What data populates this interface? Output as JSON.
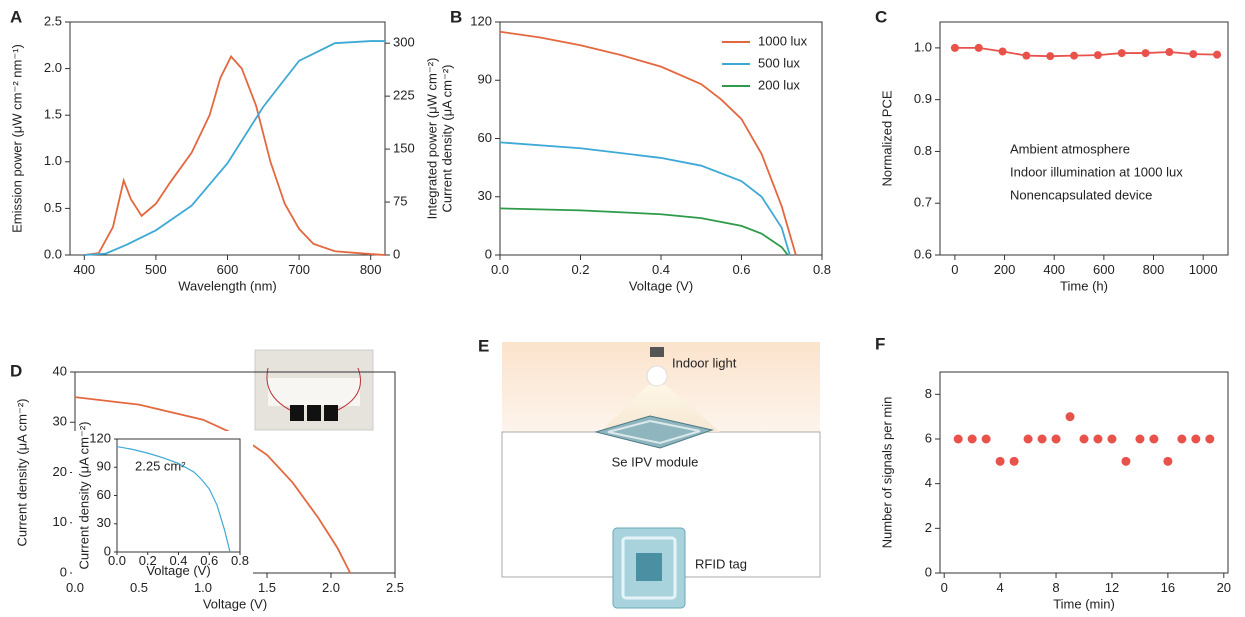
{
  "chart_data": [
    {
      "type": "line",
      "label": "A",
      "xlabel": "Wavelength (nm)",
      "ylabel": "Emission power (μW cm⁻² nm⁻¹)",
      "y2label": "Integrated power (μW cm⁻²)",
      "xlim": [
        380,
        820
      ],
      "xticks": [
        400,
        500,
        600,
        700,
        800
      ],
      "ylim": [
        0,
        2.5
      ],
      "yticks": [
        {
          "value": 0,
          "label": "0.0"
        },
        0.5,
        {
          "value": 1,
          "label": "1.0"
        },
        1.5,
        {
          "value": 2,
          "label": "2.0"
        },
        2.5
      ],
      "y2lim": [
        0,
        330
      ],
      "y2ticks": [
        0,
        75,
        150,
        225,
        300
      ],
      "series": [
        {
          "color": "#e4683f",
          "x": [
            400,
            420,
            440,
            455,
            465,
            480,
            500,
            520,
            550,
            575,
            590,
            605,
            620,
            640,
            660,
            680,
            700,
            720,
            750,
            800,
            820
          ],
          "values": [
            0,
            0.02,
            0.3,
            0.8,
            0.6,
            0.42,
            0.55,
            0.78,
            1.1,
            1.5,
            1.9,
            2.13,
            2.0,
            1.6,
            1.0,
            0.55,
            0.28,
            0.12,
            0.04,
            0.01,
            0
          ]
        },
        {
          "color": "#3ea9d6",
          "axis": "y2",
          "x": [
            400,
            430,
            460,
            500,
            550,
            600,
            650,
            700,
            750,
            800,
            820
          ],
          "values": [
            0,
            2,
            15,
            35,
            70,
            130,
            210,
            275,
            300,
            303,
            303
          ]
        }
      ]
    },
    {
      "type": "line",
      "label": "B",
      "xlabel": "Voltage (V)",
      "ylabel": "Current density (μA cm⁻²)",
      "legend": "upper right",
      "xlim": [
        0,
        0.8
      ],
      "xticks": [
        {
          "value": 0,
          "label": "0.0"
        },
        0.2,
        0.4,
        0.6,
        0.8
      ],
      "ylim": [
        0,
        120
      ],
      "yticks": [
        0,
        30,
        60,
        90,
        120
      ],
      "series": [
        {
          "name": "1000 lux",
          "color": "#e4683f",
          "x": [
            0,
            0.1,
            0.2,
            0.3,
            0.4,
            0.5,
            0.55,
            0.6,
            0.65,
            0.7,
            0.735
          ],
          "values": [
            115,
            112,
            108,
            103,
            97,
            88,
            80,
            70,
            52,
            25,
            0
          ]
        },
        {
          "name": "500 lux",
          "color": "#3ea9d6",
          "x": [
            0,
            0.2,
            0.4,
            0.5,
            0.6,
            0.65,
            0.7,
            0.72
          ],
          "values": [
            58,
            55,
            50,
            46,
            38,
            30,
            14,
            0
          ]
        },
        {
          "name": "200 lux",
          "color": "#2e9a4a",
          "x": [
            0,
            0.2,
            0.4,
            0.5,
            0.6,
            0.65,
            0.7,
            0.715
          ],
          "values": [
            24,
            23,
            21,
            19,
            15,
            11,
            4,
            0
          ]
        }
      ]
    },
    {
      "type": "line",
      "label": "C",
      "markers": true,
      "xlabel": "Time (h)",
      "ylabel": "Normalized PCE",
      "annotations": [
        "Ambient atmosphere",
        "Indoor illumination at 1000 lux",
        "Nonencapsulated device"
      ],
      "xlim": [
        -60,
        1100
      ],
      "xticks": [
        0,
        200,
        400,
        600,
        800,
        1000
      ],
      "ylim": [
        0.6,
        1.05
      ],
      "yticks": [
        0.6,
        0.7,
        0.8,
        0.9,
        {
          "value": 1,
          "label": "1.0"
        }
      ],
      "series": [
        {
          "color": "#e8524a",
          "x": [
            0,
            96,
            192,
            288,
            384,
            480,
            576,
            672,
            768,
            864,
            960,
            1056
          ],
          "values": [
            1.0,
            1.0,
            0.993,
            0.985,
            0.984,
            0.985,
            0.986,
            0.99,
            0.99,
            0.992,
            0.988,
            0.987
          ]
        }
      ]
    },
    {
      "type": "line",
      "label": "D",
      "xlabel": "Voltage (V)",
      "ylabel": "Current density (μA cm⁻²)",
      "xlim": [
        0,
        2.5
      ],
      "xticks": [
        {
          "value": 0,
          "label": "0.0"
        },
        0.5,
        {
          "value": 1,
          "label": "1.0"
        },
        1.5,
        {
          "value": 2,
          "label": "2.0"
        },
        2.5
      ],
      "ylim": [
        0,
        40
      ],
      "yticks": [
        0,
        10,
        20,
        30,
        40
      ],
      "series": [
        {
          "color": "#e4683f",
          "x": [
            0,
            0.5,
            1.0,
            1.3,
            1.5,
            1.7,
            1.9,
            2.05,
            2.15
          ],
          "values": [
            35,
            33.5,
            30.5,
            27,
            23.5,
            18,
            11,
            5,
            0
          ]
        }
      ]
    },
    {
      "type": "line",
      "xlabel": "Voltage (V)",
      "ylabel": "Current density (μA cm⁻²)",
      "annotations": [
        "2.25 cm²"
      ],
      "xlim": [
        0,
        0.8
      ],
      "xticks": [
        {
          "value": 0,
          "label": "0.0"
        },
        0.2,
        0.4,
        0.6,
        0.8
      ],
      "ylim": [
        0,
        120
      ],
      "yticks": [
        0,
        30,
        60,
        90,
        120
      ],
      "series": [
        {
          "color": "#3ea9d6",
          "x": [
            0,
            0.1,
            0.2,
            0.3,
            0.4,
            0.5,
            0.55,
            0.6,
            0.65,
            0.7,
            0.735
          ],
          "values": [
            112,
            109,
            105,
            100,
            94,
            85,
            77,
            67,
            50,
            23,
            0
          ]
        }
      ]
    },
    {
      "type": "scatter",
      "label": "F",
      "xlabel": "Time (min)",
      "ylabel": "Number of signals per min",
      "xlim": [
        -0.3,
        20.3
      ],
      "xticks": [
        0,
        4,
        8,
        12,
        16,
        20
      ],
      "ylim": [
        0,
        9
      ],
      "yticks": [
        0,
        2,
        4,
        6,
        8
      ],
      "series": [
        {
          "color": "#e8524a",
          "x": [
            1,
            2,
            3,
            4,
            5,
            6,
            7,
            8,
            9,
            10,
            11,
            12,
            13,
            14,
            15,
            16,
            17,
            18,
            19
          ],
          "values": [
            6,
            6,
            6,
            5,
            5,
            6,
            6,
            6,
            7,
            6,
            6,
            6,
            5,
            6,
            6,
            5,
            6,
            6,
            6
          ]
        }
      ]
    }
  ],
  "panel_e": {
    "label": "E",
    "light": "Indoor light",
    "module": "Se IPV module",
    "tag": "RFID tag"
  }
}
